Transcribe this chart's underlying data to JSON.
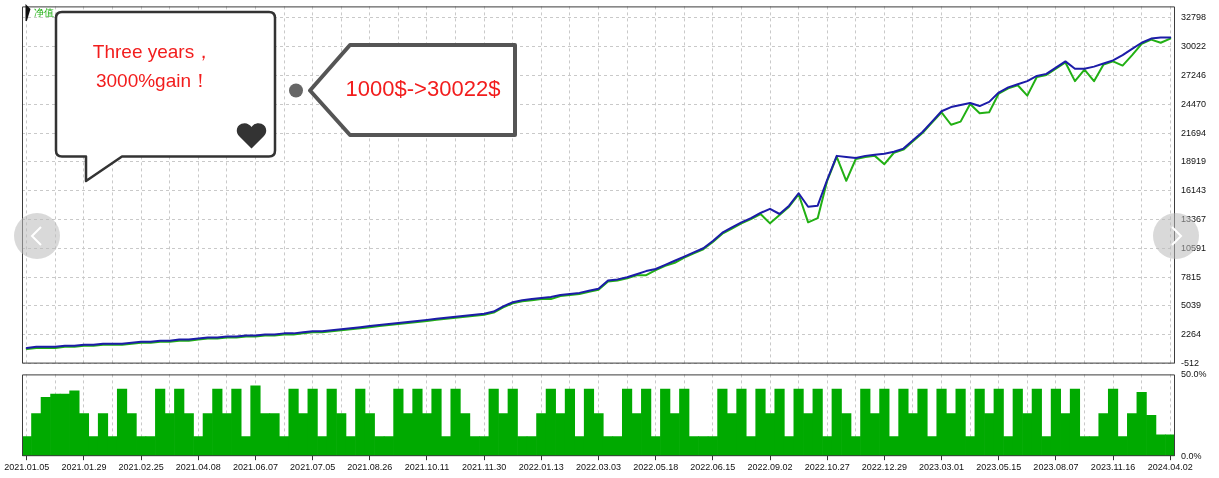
{
  "chart_data": [
    {
      "type": "line",
      "categories": [
        "2021.01.05",
        null,
        null,
        null,
        null,
        null,
        "2021.01.29",
        null,
        null,
        null,
        null,
        null,
        "2021.02.25",
        null,
        null,
        null,
        null,
        null,
        "2021.04.08",
        null,
        null,
        null,
        null,
        null,
        "2021.06.07",
        null,
        null,
        null,
        null,
        null,
        "2021.07.05",
        null,
        null,
        null,
        null,
        null,
        "2021.08.26",
        null,
        null,
        null,
        null,
        null,
        "2021.10.11",
        null,
        null,
        null,
        null,
        null,
        "2021.11.30",
        null,
        null,
        null,
        null,
        null,
        "2022.01.13",
        null,
        null,
        null,
        null,
        null,
        "2022.03.03",
        null,
        null,
        null,
        null,
        null,
        "2022.05.18",
        null,
        null,
        null,
        null,
        null,
        "2022.06.15",
        null,
        null,
        null,
        null,
        null,
        "2022.09.02",
        null,
        null,
        null,
        null,
        null,
        "2022.10.27",
        null,
        null,
        null,
        null,
        null,
        "2022.12.29",
        null,
        null,
        null,
        null,
        null,
        "2023.03.01",
        null,
        null,
        null,
        null,
        null,
        "2023.05.15",
        null,
        null,
        null,
        null,
        null,
        "2023.08.07",
        null,
        null,
        null,
        null,
        null,
        "2023.11.16",
        null,
        null,
        null,
        null,
        null,
        "2024.04.02"
      ],
      "series": [
        {
          "color": "#1c1ca8",
          "values": [
            1000,
            1100,
            1100,
            1100,
            1200,
            1200,
            1300,
            1300,
            1400,
            1400,
            1400,
            1500,
            1600,
            1600,
            1700,
            1700,
            1800,
            1800,
            1900,
            2000,
            2000,
            2100,
            2100,
            2200,
            2200,
            2300,
            2300,
            2400,
            2400,
            2500,
            2600,
            2600,
            2700,
            2800,
            2900,
            3000,
            3100,
            3200,
            3300,
            3400,
            3500,
            3600,
            3700,
            3800,
            3900,
            4000,
            4100,
            4200,
            4300,
            4500,
            5000,
            5400,
            5600,
            5700,
            5800,
            5900,
            6100,
            6200,
            6300,
            6500,
            6700,
            7500,
            7600,
            7800,
            8100,
            8400,
            8600,
            9000,
            9400,
            9800,
            10200,
            10600,
            11300,
            12100,
            12600,
            13100,
            13500,
            14000,
            14400,
            13900,
            14700,
            15900,
            14600,
            14700,
            17200,
            19500,
            19400,
            19300,
            19500,
            19600,
            19700,
            19900,
            20200,
            21000,
            21800,
            22800,
            23800,
            24200,
            24400,
            24600,
            24300,
            24700,
            25600,
            26100,
            26400,
            26700,
            27200,
            27400,
            28000,
            28600,
            27900,
            27900,
            28100,
            28400,
            28700,
            29200,
            29800,
            30400,
            30800,
            30900,
            30900
          ]
        },
        {
          "name": "净值",
          "color": "#22b014",
          "values": [
            900,
            1000,
            1000,
            1000,
            1100,
            1100,
            1200,
            1200,
            1300,
            1300,
            1300,
            1400,
            1500,
            1500,
            1600,
            1600,
            1700,
            1700,
            1800,
            1900,
            1900,
            2000,
            2000,
            2100,
            2100,
            2200,
            2200,
            2300,
            2300,
            2400,
            2500,
            2500,
            2600,
            2700,
            2800,
            2900,
            3000,
            3100,
            3200,
            3300,
            3400,
            3500,
            3600,
            3700,
            3800,
            3900,
            4000,
            4100,
            4200,
            4400,
            4900,
            5300,
            5500,
            5600,
            5700,
            5700,
            6000,
            6100,
            6200,
            6400,
            6600,
            7400,
            7500,
            7700,
            8000,
            8000,
            8500,
            8900,
            9200,
            9700,
            10100,
            10500,
            11200,
            12000,
            12500,
            13000,
            13400,
            13900,
            13000,
            13800,
            14600,
            15800,
            13100,
            13500,
            17100,
            19400,
            17100,
            19200,
            19400,
            19500,
            18700,
            19800,
            20100,
            20900,
            21700,
            22700,
            23700,
            22500,
            22800,
            24500,
            23600,
            23700,
            25500,
            26000,
            26300,
            25300,
            27100,
            27300,
            27900,
            28500,
            26700,
            27800,
            26700,
            28300,
            28600,
            28200,
            29200,
            30300,
            30700,
            30400,
            30800
          ]
        }
      ],
      "ylim": [
        -512,
        33900
      ],
      "yticks": [
        -512,
        2264,
        5039,
        7815,
        10591,
        13367,
        16143,
        18919,
        21694,
        24470,
        27246,
        30022,
        32798
      ],
      "grid": true,
      "legend": "top left",
      "tick_labels": "y",
      "annotations": [
        "Three years，\n3000%gain！",
        "1000$->30022$"
      ]
    },
    {
      "type": "bar",
      "categories": [
        "2021.01.05",
        null,
        null,
        null,
        null,
        null,
        "2021.01.29",
        null,
        null,
        null,
        null,
        null,
        "2021.02.25",
        null,
        null,
        null,
        null,
        null,
        "2021.04.08",
        null,
        null,
        null,
        null,
        null,
        "2021.06.07",
        null,
        null,
        null,
        null,
        null,
        "2021.07.05",
        null,
        null,
        null,
        null,
        null,
        "2021.08.26",
        null,
        null,
        null,
        null,
        null,
        "2021.10.11",
        null,
        null,
        null,
        null,
        null,
        "2021.11.30",
        null,
        null,
        null,
        null,
        null,
        "2022.01.13",
        null,
        null,
        null,
        null,
        null,
        "2022.03.03",
        null,
        null,
        null,
        null,
        null,
        "2022.05.18",
        null,
        null,
        null,
        null,
        null,
        "2022.06.15",
        null,
        null,
        null,
        null,
        null,
        "2022.09.02",
        null,
        null,
        null,
        null,
        null,
        "2022.10.27",
        null,
        null,
        null,
        null,
        null,
        "2022.12.29",
        null,
        null,
        null,
        null,
        null,
        "2023.03.01",
        null,
        null,
        null,
        null,
        null,
        "2023.05.15",
        null,
        null,
        null,
        null,
        null,
        "2023.08.07",
        null,
        null,
        null,
        null,
        null,
        "2023.11.16",
        null,
        null,
        null,
        null,
        null,
        "2024.04.02"
      ],
      "values": [
        12,
        26,
        36,
        38,
        38,
        40,
        26,
        12,
        26,
        12,
        41,
        26,
        12,
        12,
        41,
        26,
        41,
        26,
        12,
        26,
        41,
        26,
        41,
        12,
        43,
        26,
        26,
        12,
        41,
        26,
        41,
        12,
        41,
        26,
        12,
        41,
        26,
        12,
        12,
        41,
        26,
        41,
        26,
        41,
        12,
        41,
        26,
        12,
        12,
        41,
        26,
        41,
        12,
        12,
        26,
        41,
        26,
        41,
        12,
        41,
        26,
        12,
        12,
        41,
        26,
        41,
        12,
        41,
        26,
        41,
        12,
        12,
        12,
        41,
        26,
        41,
        12,
        41,
        26,
        41,
        12,
        41,
        26,
        41,
        12,
        41,
        26,
        12,
        41,
        26,
        41,
        12,
        41,
        26,
        41,
        12,
        41,
        26,
        41,
        12,
        41,
        26,
        41,
        12,
        41,
        26,
        41,
        12,
        41,
        26,
        41,
        12,
        12,
        26,
        41,
        12,
        26,
        39,
        25,
        13,
        13
      ],
      "color": "#00aa00",
      "ylim": [
        0,
        50
      ],
      "yticks": [
        {
          "value": 0,
          "label": "0.0%"
        },
        {
          "value": 50,
          "label": "50.0%"
        }
      ],
      "grid": "x"
    }
  ]
}
